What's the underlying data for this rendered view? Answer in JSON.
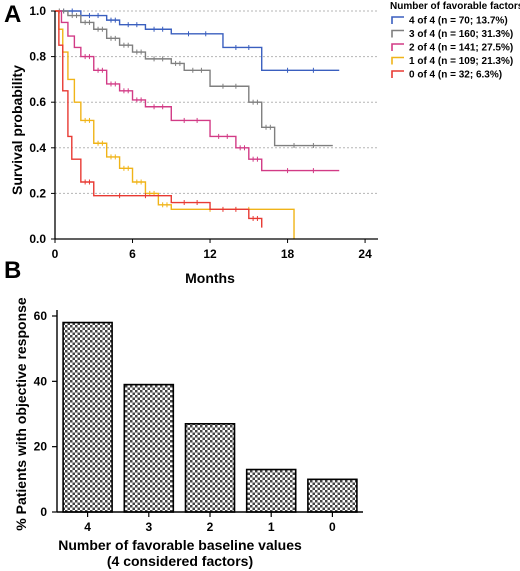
{
  "chart_data": [
    {
      "panel": "A",
      "type": "line",
      "xlabel": "Months",
      "ylabel": "Survival probability",
      "xlim": [
        0,
        25
      ],
      "ylim": [
        0,
        1.0
      ],
      "xticks": [
        0,
        6,
        12,
        18,
        24
      ],
      "yticks": [
        0.0,
        0.2,
        0.4,
        0.6,
        0.8,
        1.0
      ],
      "ytick_labels": [
        "0.0",
        "0.2",
        "0.4",
        "0.6",
        "0.8",
        "1.0"
      ],
      "grid": "horizontal dotted",
      "legend_title": "Number of favorable factors",
      "legend_placement": "right",
      "series": [
        {
          "name": "4 of 4 (n = 70; 13.7%)",
          "color": "#3a5fbf",
          "x": [
            0,
            2,
            4,
            5,
            7,
            9,
            13,
            16,
            22
          ],
          "y": [
            1.0,
            0.98,
            0.96,
            0.94,
            0.92,
            0.9,
            0.84,
            0.74,
            0.74
          ]
        },
        {
          "name": "3 of 4 (n = 160; 31.3%)",
          "color": "#7f7f7f",
          "x": [
            0,
            1,
            2,
            3,
            4,
            5,
            6,
            7,
            9,
            10,
            12,
            15,
            16,
            17,
            21.5
          ],
          "y": [
            1.0,
            0.98,
            0.95,
            0.92,
            0.88,
            0.85,
            0.82,
            0.79,
            0.77,
            0.74,
            0.67,
            0.6,
            0.49,
            0.41,
            0.41
          ]
        },
        {
          "name": "2 of 4 (n = 141; 27.5%)",
          "color": "#d23b86",
          "x": [
            0,
            0.5,
            1,
            1.5,
            2,
            3,
            4,
            5,
            6,
            7,
            9,
            12,
            14,
            15,
            16,
            22
          ],
          "y": [
            1.0,
            0.95,
            0.89,
            0.84,
            0.8,
            0.74,
            0.68,
            0.65,
            0.61,
            0.58,
            0.52,
            0.45,
            0.4,
            0.35,
            0.3,
            0.3
          ]
        },
        {
          "name": "1 of 4 (n = 109; 21.3%)",
          "color": "#f0b418",
          "x": [
            0,
            0.3,
            0.6,
            1,
            1.5,
            2,
            3,
            4,
            5,
            6,
            7,
            8,
            9,
            18,
            18.5
          ],
          "y": [
            1.0,
            0.92,
            0.82,
            0.7,
            0.6,
            0.52,
            0.42,
            0.36,
            0.31,
            0.25,
            0.2,
            0.15,
            0.13,
            0.13,
            0.0
          ]
        },
        {
          "name": "0 of 4 (n = 32; 6.3%)",
          "color": "#e83a33",
          "x": [
            0,
            0.3,
            0.6,
            1,
            1.3,
            2,
            3,
            9,
            12,
            15,
            16
          ],
          "y": [
            1.0,
            0.85,
            0.65,
            0.45,
            0.35,
            0.25,
            0.19,
            0.16,
            0.13,
            0.09,
            0.05
          ]
        }
      ]
    },
    {
      "panel": "B",
      "type": "bar",
      "xlabel": "Number of favorable baseline values\n(4 considered factors)",
      "xlabel_lines": [
        "Number of favorable baseline values",
        "(4 considered factors)"
      ],
      "ylabel": "% Patients with objective response",
      "categories": [
        "4",
        "3",
        "2",
        "1",
        "0"
      ],
      "values": [
        58,
        39,
        27,
        13,
        10
      ],
      "ylim": [
        0,
        60
      ],
      "yticks": [
        0,
        20,
        40,
        60
      ],
      "fill": "crosshatch"
    }
  ]
}
